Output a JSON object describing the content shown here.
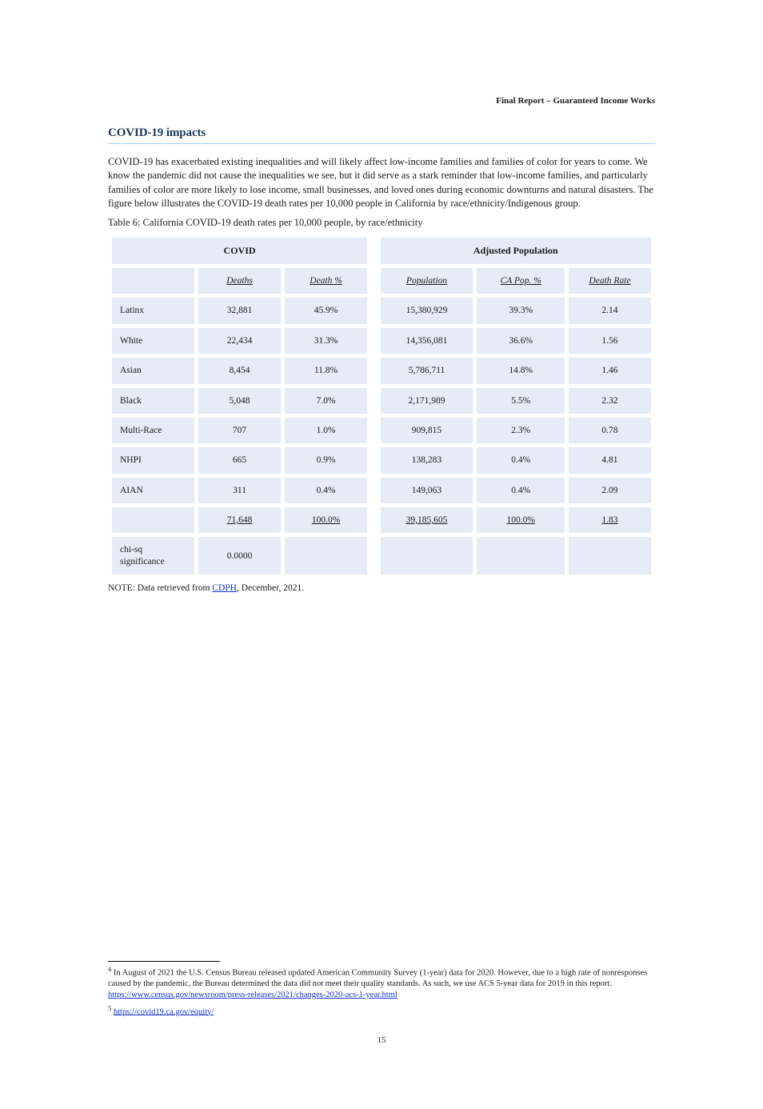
{
  "header_right": "Final Report – Guaranteed Income Works",
  "section_title_1": "COVID-19 impacts",
  "intro_para": "COVID-19 has exacerbated existing inequalities and will likely affect low-income families and families of color for years to come. We know the pandemic did not cause the inequalities we see, but it did serve as a stark reminder that low-income families, and particularly families of color are more likely to lose income, small businesses, and loved ones during economic downturns and natural disasters. The figure below illustrates the COVID-19 death rates per 10,000 people in California by race/ethnicity/Indigenous group.",
  "table_caption": "Table 6: California COVID-19 death rates per 10,000 people, by race/ethnicity",
  "table": {
    "top_headers": [
      "COVID",
      "Adjusted Population"
    ],
    "sub_headers_left": [
      "Deaths",
      "Death %"
    ],
    "sub_headers_right": [
      "Population",
      "CA Pop. %"
    ],
    "sub_header_last": "Death Rate",
    "rows": [
      {
        "label": "Latinx",
        "cells": [
          "32,881",
          "45.9%",
          "15,380,929",
          "39.3%",
          "2.14"
        ]
      },
      {
        "label": "White",
        "cells": [
          "22,434",
          "31.3%",
          "14,356,081",
          "36.6%",
          "1.56"
        ]
      },
      {
        "label": "Asian",
        "cells": [
          "8,454",
          "11.8%",
          "5,786,711",
          "14.8%",
          "1.46"
        ]
      },
      {
        "label": "Black",
        "cells": [
          "5,048",
          "7.0%",
          "2,171,989",
          "5.5%",
          "2.32"
        ]
      },
      {
        "label": "Multi-Race",
        "cells": [
          "707",
          "1.0%",
          "909,815",
          "2.3%",
          "0.78"
        ]
      },
      {
        "label": "NHPI",
        "cells": [
          "665",
          "0.9%",
          "138,283",
          "0.4%",
          "4.81"
        ]
      },
      {
        "label": "AIAN",
        "cells": [
          "311",
          "0.4%",
          "149,063",
          "0.4%",
          "2.09"
        ]
      }
    ],
    "total_row": {
      "label": "",
      "cells": [
        "71,648",
        "100.0%",
        "39,185,605",
        "100.0%",
        "1.83"
      ]
    },
    "sig_row": {
      "label": "chi-sq significance",
      "cells": [
        "0.0000",
        "",
        "",
        "",
        ""
      ]
    }
  },
  "table_note_prefix": "NOTE: Data retrieved from ",
  "table_note_link_text": "CDPH",
  "table_note_link_href": "#",
  "table_note_suffix": ", December, 2021.",
  "footnotes": [
    {
      "num": "4",
      "text_prefix": "In August of 2021 the U.S. Census Bureau released updated American Community Survey (1-year) data for 2020. However, due to a high rate of nonresponses caused by the pandemic, the Bureau determined the data did not meet their quality standards. As such, we use ACS 5-year data for 2019 in this report. ",
      "link_text": "https://www.census.gov/newsroom/press-releases/2021/changes-2020-acs-1-year.html",
      "link_href": "#"
    },
    {
      "num": "5",
      "text_prefix": "",
      "link_text": "https://covid19.ca.gov/equity/",
      "link_href": "#"
    }
  ],
  "page_number": "15"
}
